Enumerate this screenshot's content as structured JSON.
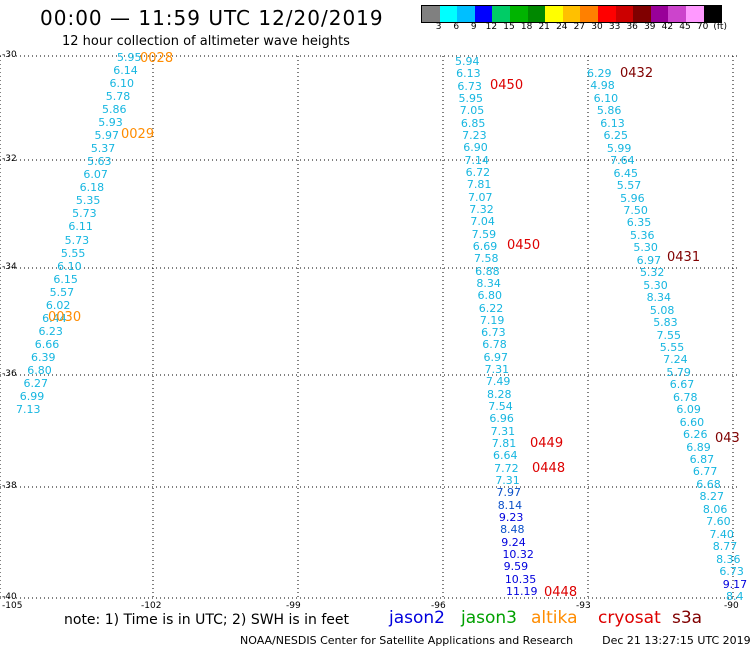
{
  "header": {
    "title": "00:00 — 11:59 UTC 12/20/2019",
    "subtitle": "12 hour collection of altimeter wave heights"
  },
  "legend": {
    "colors": [
      "#808080",
      "#00ffff",
      "#00bfff",
      "#0000ff",
      "#00cc66",
      "#00b400",
      "#008800",
      "#ffff00",
      "#ffc000",
      "#ff8000",
      "#ff0000",
      "#cc0000",
      "#800000",
      "#990099",
      "#cc44cc",
      "#ff99ff",
      "#000000"
    ],
    "labels": [
      "3",
      "6",
      "9",
      "12",
      "15",
      "18",
      "21",
      "24",
      "27",
      "30",
      "33",
      "36",
      "39",
      "42",
      "45",
      "70",
      "(ft)"
    ]
  },
  "map": {
    "lat_labels": [
      "-30",
      "-32",
      "-34",
      "-36",
      "-38",
      "-40"
    ],
    "lon_labels": [
      "-105",
      "-102",
      "-99",
      "-96",
      "-93",
      "-90"
    ]
  },
  "tracks": {
    "track_left": {
      "color": "#16b6e0",
      "values": [
        "5.95",
        "6.14",
        "6.10",
        "5.78",
        "5.86",
        "5.93",
        "5.97",
        "5.37",
        "5.63",
        "6.07",
        "6.18",
        "5.35",
        "5.73",
        "6.11",
        "5.73",
        "5.55",
        "6.10",
        "6.15",
        "5.57",
        "6.02",
        "6.44",
        "6.23",
        "6.66",
        "6.39",
        "6.80",
        "6.27",
        "6.99",
        "7.13"
      ]
    },
    "track_middle": {
      "values": [
        "5.94",
        "6.13",
        "6.73",
        "5.95",
        "7.05",
        "6.85",
        "7.23",
        "6.90",
        "7.14",
        "6.72",
        "7.81",
        "7.07",
        "7.32",
        "7.04",
        "7.59",
        "6.69",
        "7.58",
        "6.88",
        "8.34",
        "6.80",
        "6.22",
        "7.19",
        "6.73",
        "6.78",
        "6.97",
        "7.31",
        "7.49",
        "8.28",
        "7.54",
        "6.96",
        "7.31",
        "7.81",
        "6.64",
        "7.72",
        "7.31",
        "7.97",
        "8.14",
        "9.23",
        "8.48",
        "9.24",
        "10.32",
        "9.59",
        "10.35",
        "11.19"
      ]
    },
    "track_right": {
      "values": [
        "6.29",
        "4.98",
        "6.10",
        "5.86",
        "6.13",
        "6.25",
        "5.99",
        "7.64",
        "6.45",
        "5.57",
        "5.96",
        "7.50",
        "6.35",
        "5.36",
        "5.30",
        "6.97",
        "5.32",
        "5.30",
        "8.34",
        "5.08",
        "5.83",
        "7.55",
        "5.55",
        "7.24",
        "5.79",
        "6.67",
        "6.78",
        "6.09",
        "6.60",
        "6.26",
        "6.89",
        "6.87",
        "6.77",
        "6.68",
        "8.27",
        "8.06",
        "7.60",
        "7.40",
        "8.77",
        "8.36",
        "6.73",
        "9.17",
        "8.4"
      ]
    }
  },
  "time_labels": [
    {
      "text": "0028",
      "color": "#ff8c00"
    },
    {
      "text": "0029",
      "color": "#ff8c00"
    },
    {
      "text": "0030",
      "color": "#ff8c00"
    },
    {
      "text": "0450",
      "color": "#dd0000"
    },
    {
      "text": "0450",
      "color": "#dd0000"
    },
    {
      "text": "0449",
      "color": "#dd0000"
    },
    {
      "text": "0448",
      "color": "#dd0000"
    },
    {
      "text": "0448",
      "color": "#dd0000"
    },
    {
      "text": "0432",
      "color": "#800000"
    },
    {
      "text": "0431",
      "color": "#800000"
    },
    {
      "text": "043",
      "color": "#800000"
    }
  ],
  "footer": {
    "note": "note:  1) Time is in UTC; 2) SWH is in feet",
    "satellites": [
      {
        "name": "jason2",
        "color": "#0000dd"
      },
      {
        "name": "jason3",
        "color": "#00a000"
      },
      {
        "name": "altika",
        "color": "#ff8c00"
      },
      {
        "name": "cryosat",
        "color": "#dd0000"
      },
      {
        "name": "s3a",
        "color": "#800000"
      }
    ],
    "credit": "NOAA/NESDIS Center for Satellite Applications and Research",
    "timestamp": "Dec 21 13:27:15 UTC 2019"
  }
}
